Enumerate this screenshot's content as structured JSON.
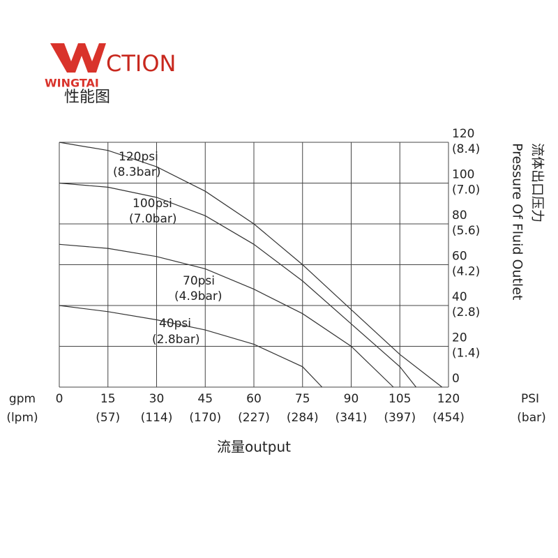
{
  "brand": "WINGTAI",
  "logo_text": "CTION",
  "subtitle": "性能图",
  "chart_data": {
    "type": "line",
    "xlim": [
      0,
      120
    ],
    "xticks": [
      0,
      15,
      30,
      45,
      60,
      75,
      90,
      105,
      120
    ],
    "xtick_sublabels": [
      null,
      "(57)",
      "(114)",
      "(170)",
      "(227)",
      "(284)",
      "(341)",
      "(397)",
      "(454)"
    ],
    "ylim": [
      0,
      120
    ],
    "yticks": [
      0,
      20,
      40,
      60,
      80,
      100,
      120
    ],
    "ytick_sublabels": [
      null,
      "(1.4)",
      "(2.8)",
      "(4.2)",
      "(5.6)",
      "(7.0)",
      "(8.4)"
    ],
    "x_unit": "gpm",
    "x_unit_sub": "(lpm)",
    "y_unit": "PSI",
    "y_unit_sub": "(bar)",
    "x_label": "流量output",
    "y_label_cn": "流体出口压力",
    "y_label": "Pressure Of Fluid Outlet",
    "grid": true,
    "series": [
      {
        "name": "120psi",
        "sublabel": "(8.3bar)",
        "color": "#333333",
        "x": [
          0,
          15,
          30,
          45,
          60,
          75,
          90,
          105,
          118
        ],
        "values": [
          120,
          116,
          108,
          96,
          80,
          60,
          38,
          16,
          0
        ]
      },
      {
        "name": "100psi",
        "sublabel": "(7.0bar)",
        "color": "#333333",
        "x": [
          0,
          15,
          30,
          45,
          60,
          75,
          90,
          105,
          110
        ],
        "values": [
          100,
          98,
          93,
          84,
          70,
          52,
          31,
          10,
          0
        ]
      },
      {
        "name": "70psi",
        "sublabel": "(4.9bar)",
        "color": "#333333",
        "x": [
          0,
          15,
          30,
          45,
          60,
          75,
          90,
          103
        ],
        "values": [
          70,
          68,
          64,
          58,
          48,
          36,
          20,
          0
        ]
      },
      {
        "name": "40psi",
        "sublabel": "(2.8bar)",
        "color": "#333333",
        "x": [
          0,
          15,
          30,
          45,
          60,
          75,
          81
        ],
        "values": [
          40,
          37,
          33,
          28,
          21,
          10,
          0
        ]
      }
    ]
  }
}
